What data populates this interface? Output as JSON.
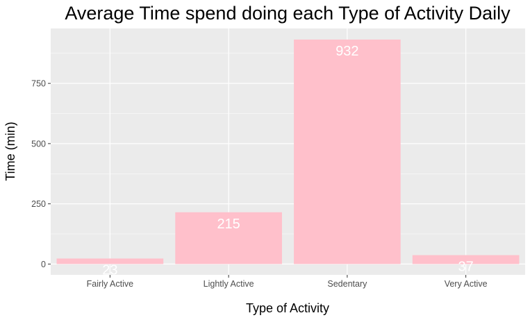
{
  "chart_data": {
    "type": "bar",
    "title": "Average Time spend doing each Type of Activity Daily",
    "xlabel": "Type of Activity",
    "ylabel": "Time (min)",
    "categories": [
      "Fairly Active",
      "Lightly Active",
      "Sedentary",
      "Very Active"
    ],
    "values": [
      23,
      215,
      932,
      37
    ],
    "data_labels": [
      "23",
      "215",
      "932",
      "37"
    ],
    "y_ticks": [
      0,
      250,
      500,
      750
    ],
    "ylim": [
      -45,
      978
    ],
    "grid": true,
    "bar_color": "#ffc0cb",
    "panel_color": "#ebebeb",
    "grid_color": "#ffffff",
    "label_color": "#ffffff"
  }
}
